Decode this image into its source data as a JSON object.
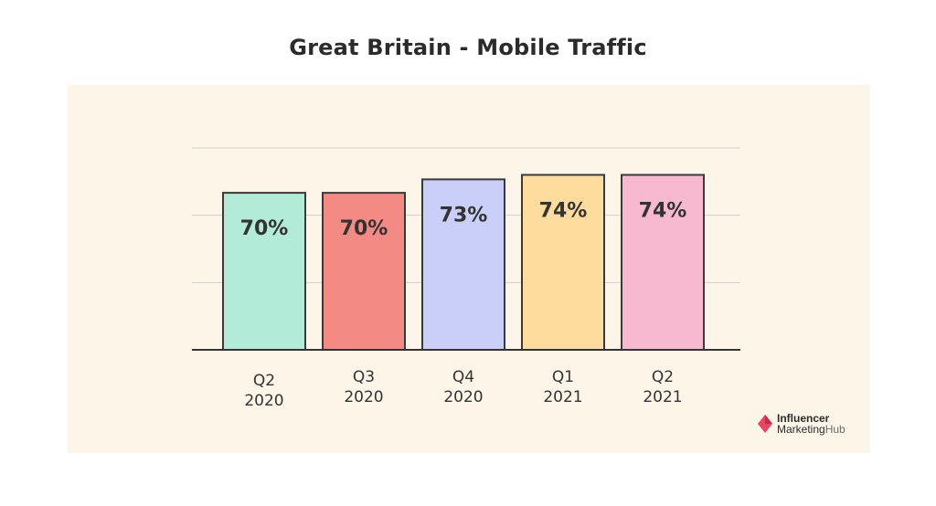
{
  "chart_data": {
    "type": "bar",
    "title": "Great Britain - Mobile Traffic",
    "categories": [
      [
        "Q2",
        "2020"
      ],
      [
        "Q3",
        "2020"
      ],
      [
        "Q4",
        "2020"
      ],
      [
        "Q1",
        "2021"
      ],
      [
        "Q2",
        "2021"
      ]
    ],
    "values": [
      70,
      70,
      73,
      74,
      74
    ],
    "value_labels": [
      "70%",
      "70%",
      "73%",
      "74%",
      "74%"
    ],
    "colors": [
      "#b2ecd9",
      "#f38b84",
      "#c9cff8",
      "#fedc9e",
      "#f6b9d0"
    ],
    "xlabel": "",
    "ylabel": "",
    "ylim": [
      35,
      80
    ],
    "gridlines": [
      50,
      65,
      80
    ],
    "grid": true
  },
  "brand": {
    "line1": "Influencer",
    "line2a": "Marketing",
    "line2b": "Hub"
  }
}
